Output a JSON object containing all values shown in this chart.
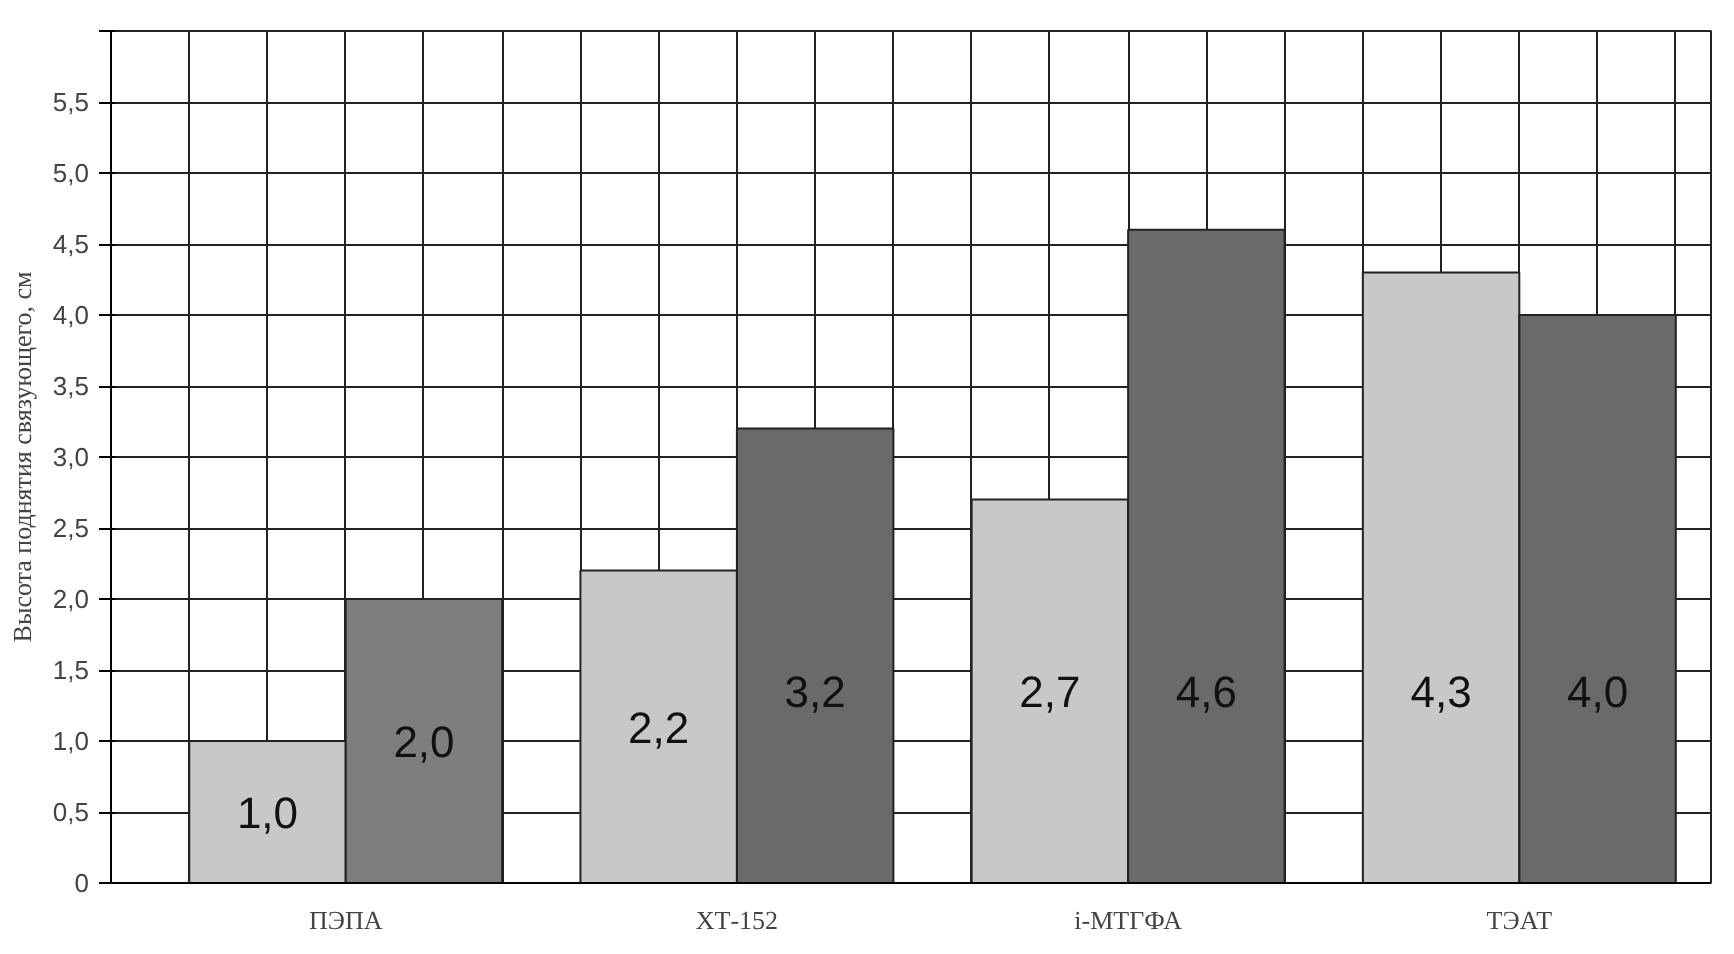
{
  "chart_data": {
    "type": "bar",
    "ylabel": "Высота поднятия связующего, см",
    "categories": [
      "ПЭПА",
      "ХТ-152",
      "i-МТГФА",
      "ТЭАТ"
    ],
    "series": [
      {
        "color": "#c8c8c8",
        "values": [
          1.0,
          2.2,
          2.7,
          4.3
        ],
        "value_labels": [
          "1,0",
          "2,2",
          "2,7",
          "4,3"
        ]
      },
      {
        "color": "#6a6a6a",
        "colors": [
          "#7e7e7e",
          "#6a6a6a",
          "#6a6a6a",
          "#6a6a6a"
        ],
        "values": [
          2.0,
          3.2,
          4.6,
          4.0
        ],
        "value_labels": [
          "2,0",
          "3,2",
          "4,6",
          "4,0"
        ]
      }
    ],
    "ylim": [
      0,
      6
    ],
    "yticks": [
      0,
      {
        "value": 0.5,
        "label": "0,5"
      },
      {
        "value": 1,
        "label": "1,0"
      },
      {
        "value": 1.5,
        "label": "1,5"
      },
      {
        "value": 2,
        "label": "2,0"
      },
      {
        "value": 2.5,
        "label": "2,5"
      },
      {
        "value": 3,
        "label": "3,0"
      },
      {
        "value": 3.5,
        "label": "3,5"
      },
      {
        "value": 4,
        "label": "4,0"
      },
      {
        "value": 4.5,
        "label": "4,5"
      },
      {
        "value": 5,
        "label": "5,0"
      },
      {
        "value": 5.5,
        "label": "5,5"
      },
      {
        "value": 6,
        "label": null
      }
    ],
    "grid": true
  }
}
